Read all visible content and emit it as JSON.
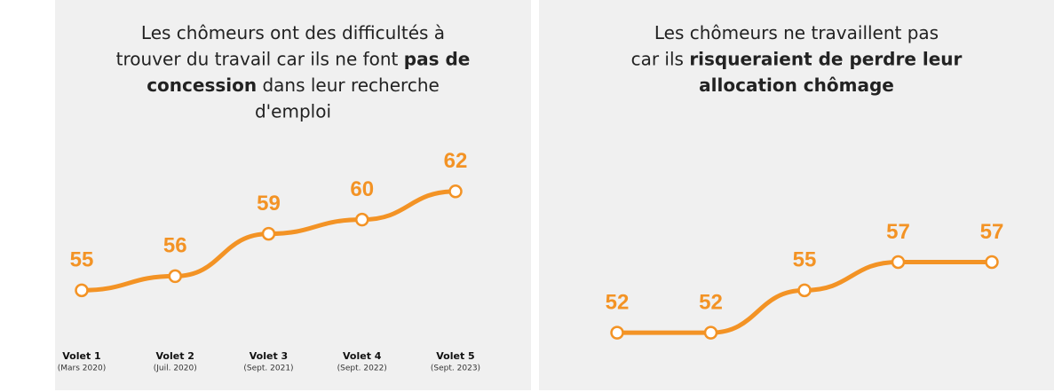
{
  "chart_data": [
    {
      "type": "line",
      "title_lines": [
        [
          {
            "text": "Les chômeurs ont des difficultés à",
            "bold": false
          }
        ],
        [
          {
            "text": "trouver du travail car ils ne font ",
            "bold": false
          },
          {
            "text": "pas de",
            "bold": true
          }
        ],
        [
          {
            "text": "concession",
            "bold": true
          },
          {
            "text": " dans leur recherche",
            "bold": false
          }
        ],
        [
          {
            "text": "d'emploi",
            "bold": false
          }
        ]
      ],
      "categories": [
        "Volet 1",
        "Volet 2",
        "Volet 3",
        "Volet 4",
        "Volet 5"
      ],
      "category_dates": [
        "(Mars 2020)",
        "(Juil. 2020)",
        "(Sept. 2021)",
        "(Sept. 2022)",
        "(Sept. 2023)"
      ],
      "values": [
        55,
        56,
        59,
        60,
        62
      ],
      "color": "#f39325",
      "ylim": [
        50,
        65
      ]
    },
    {
      "type": "line",
      "title_lines": [
        [
          {
            "text": "Les chômeurs ne travaillent pas",
            "bold": false
          }
        ],
        [
          {
            "text": "car ils ",
            "bold": false
          },
          {
            "text": "risqueraient de perdre leur",
            "bold": true
          }
        ],
        [
          {
            "text": "allocation chômage",
            "bold": true
          }
        ]
      ],
      "values": [
        52,
        52,
        55,
        57,
        57
      ],
      "color": "#f39325",
      "ylim": [
        50,
        65
      ]
    }
  ]
}
